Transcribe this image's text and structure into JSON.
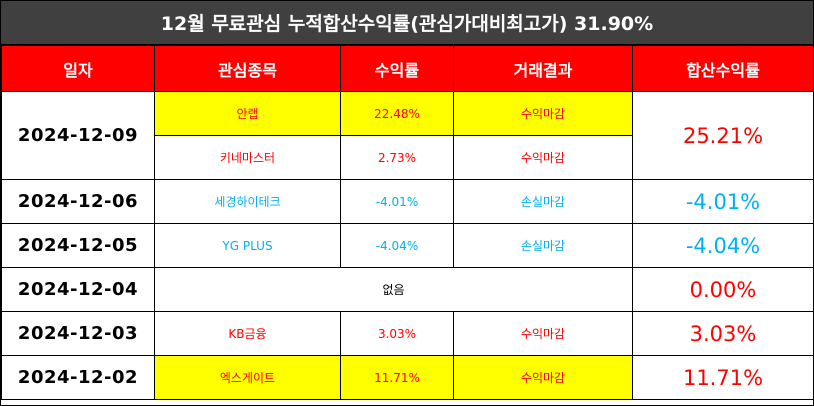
{
  "title": "12월 무료관심 누적합산수익률(관심가대비최고가) 31.90%",
  "headers": {
    "date": "일자",
    "stock": "관심종목",
    "rate": "수익률",
    "result": "거래결과",
    "total": "합산수익률"
  },
  "rows": {
    "r1": {
      "date": "2024-12-09",
      "total": "25.21%",
      "a": {
        "stock": "안랩",
        "rate": "22.48%",
        "result": "수익마감"
      },
      "b": {
        "stock": "키네마스터",
        "rate": "2.73%",
        "result": "수익마감"
      }
    },
    "r2": {
      "date": "2024-12-06",
      "stock": "세경하이테크",
      "rate": "-4.01%",
      "result": "손실마감",
      "total": "-4.01%"
    },
    "r3": {
      "date": "2024-12-05",
      "stock": "YG PLUS",
      "rate": "-4.04%",
      "result": "손실마감",
      "total": "-4.04%"
    },
    "r4": {
      "date": "2024-12-04",
      "none": "없음",
      "total": "0.00%"
    },
    "r5": {
      "date": "2024-12-03",
      "stock": "KB금융",
      "rate": "3.03%",
      "result": "수익마감",
      "total": "3.03%"
    },
    "r6": {
      "date": "2024-12-02",
      "stock": "엑스게이트",
      "rate": "11.71%",
      "result": "수익마감",
      "total": "11.71%"
    }
  },
  "colors": {
    "profit": "#ff0000",
    "loss": "#00b0f0",
    "highlight": "#ffff00",
    "header": "#ff0000",
    "title_bg": "#404040"
  }
}
